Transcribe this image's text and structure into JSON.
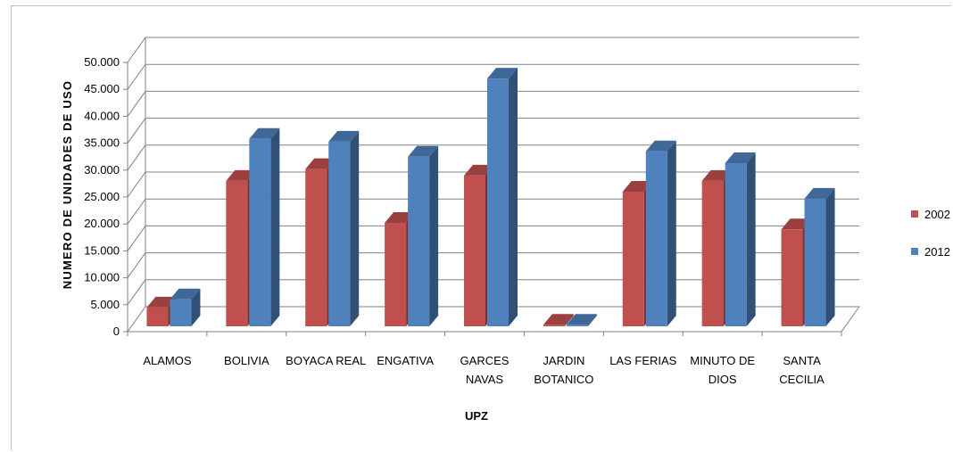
{
  "chart_data": {
    "type": "bar",
    "style": "3d-clustered-column",
    "categories": [
      [
        "ALAMOS"
      ],
      [
        "BOLIVIA"
      ],
      [
        "BOYACA REAL"
      ],
      [
        "ENGATIVA"
      ],
      [
        "GARCES",
        "NAVAS"
      ],
      [
        "JARDIN",
        "BOTANICO"
      ],
      [
        "LAS FERIAS"
      ],
      [
        "MINUTO DE",
        "DIOS"
      ],
      [
        "SANTA",
        "CECILIA"
      ]
    ],
    "series": [
      {
        "name": "2002",
        "color": "#c0504d",
        "values": [
          3500,
          27000,
          29200,
          19200,
          28000,
          300,
          25000,
          27000,
          18000
        ]
      },
      {
        "name": "2012",
        "color": "#4f81bd",
        "values": [
          5000,
          34800,
          34300,
          31500,
          46000,
          300,
          32500,
          30300,
          23700
        ]
      }
    ],
    "xlabel": "UPZ",
    "ylabel": "NUMERO DE UNIDADES DE USO",
    "ylim": [
      0,
      50000
    ],
    "yticks": [
      "0",
      "5.000",
      "10.000",
      "15.000",
      "20.000",
      "25.000",
      "30.000",
      "35.000",
      "40.000",
      "45.000",
      "50.000"
    ],
    "grid": true,
    "legend": "right"
  }
}
